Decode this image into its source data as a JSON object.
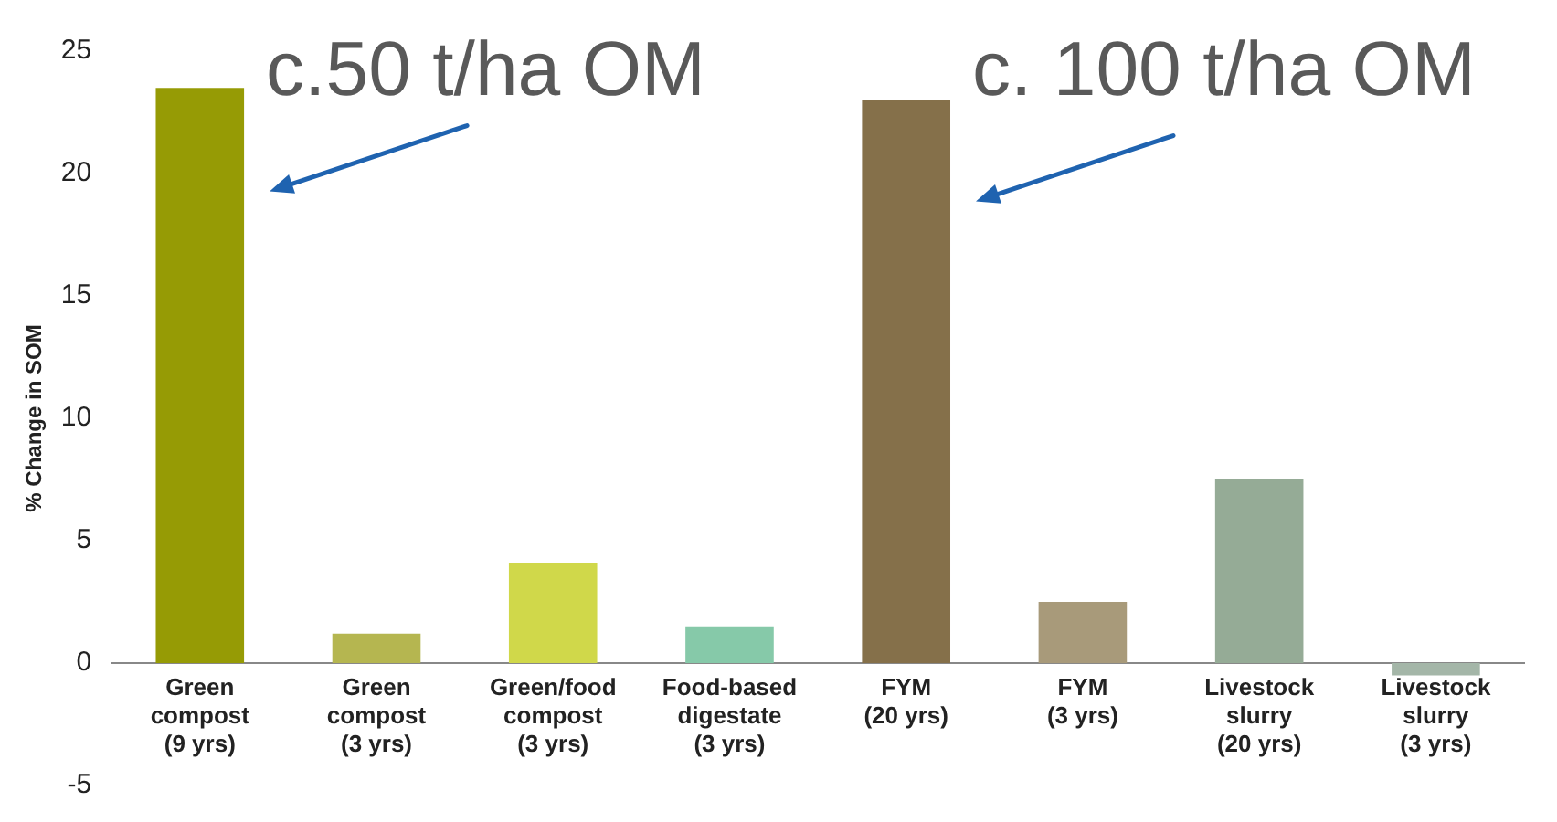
{
  "chart_data": {
    "type": "bar",
    "ylabel": "% Change in SOM",
    "categories": [
      "Green\ncompost\n(9 yrs)",
      "Green\ncompost\n(3 yrs)",
      "Green/food\ncompost\n(3 yrs)",
      "Food-based\ndigestate\n(3 yrs)",
      "FYM\n(20 yrs)",
      "FYM\n(3 yrs)",
      "Livestock\nslurry\n(20 yrs)",
      "Livestock\nslurry\n(3 yrs)"
    ],
    "values": [
      23.5,
      1.2,
      4.1,
      1.5,
      23.0,
      2.5,
      7.5,
      -0.5
    ],
    "colors": [
      "#969b05",
      "#b5b650",
      "#d0d84a",
      "#86c9a9",
      "#85704a",
      "#a89a7a",
      "#95ab96",
      "#a4b6a8"
    ],
    "ylim": [
      -5,
      25
    ],
    "yticks": [
      -5,
      0,
      5,
      10,
      15,
      20,
      25
    ],
    "grid": false,
    "legend": false,
    "annotations": [
      {
        "text": "c.50 t/ha OM",
        "x": "Green\ncompost\n(9 yrs)",
        "y": 23.5
      },
      {
        "text": "c. 100 t/ha OM",
        "x": "FYM\n(20 yrs)",
        "y": 23.0
      }
    ]
  }
}
